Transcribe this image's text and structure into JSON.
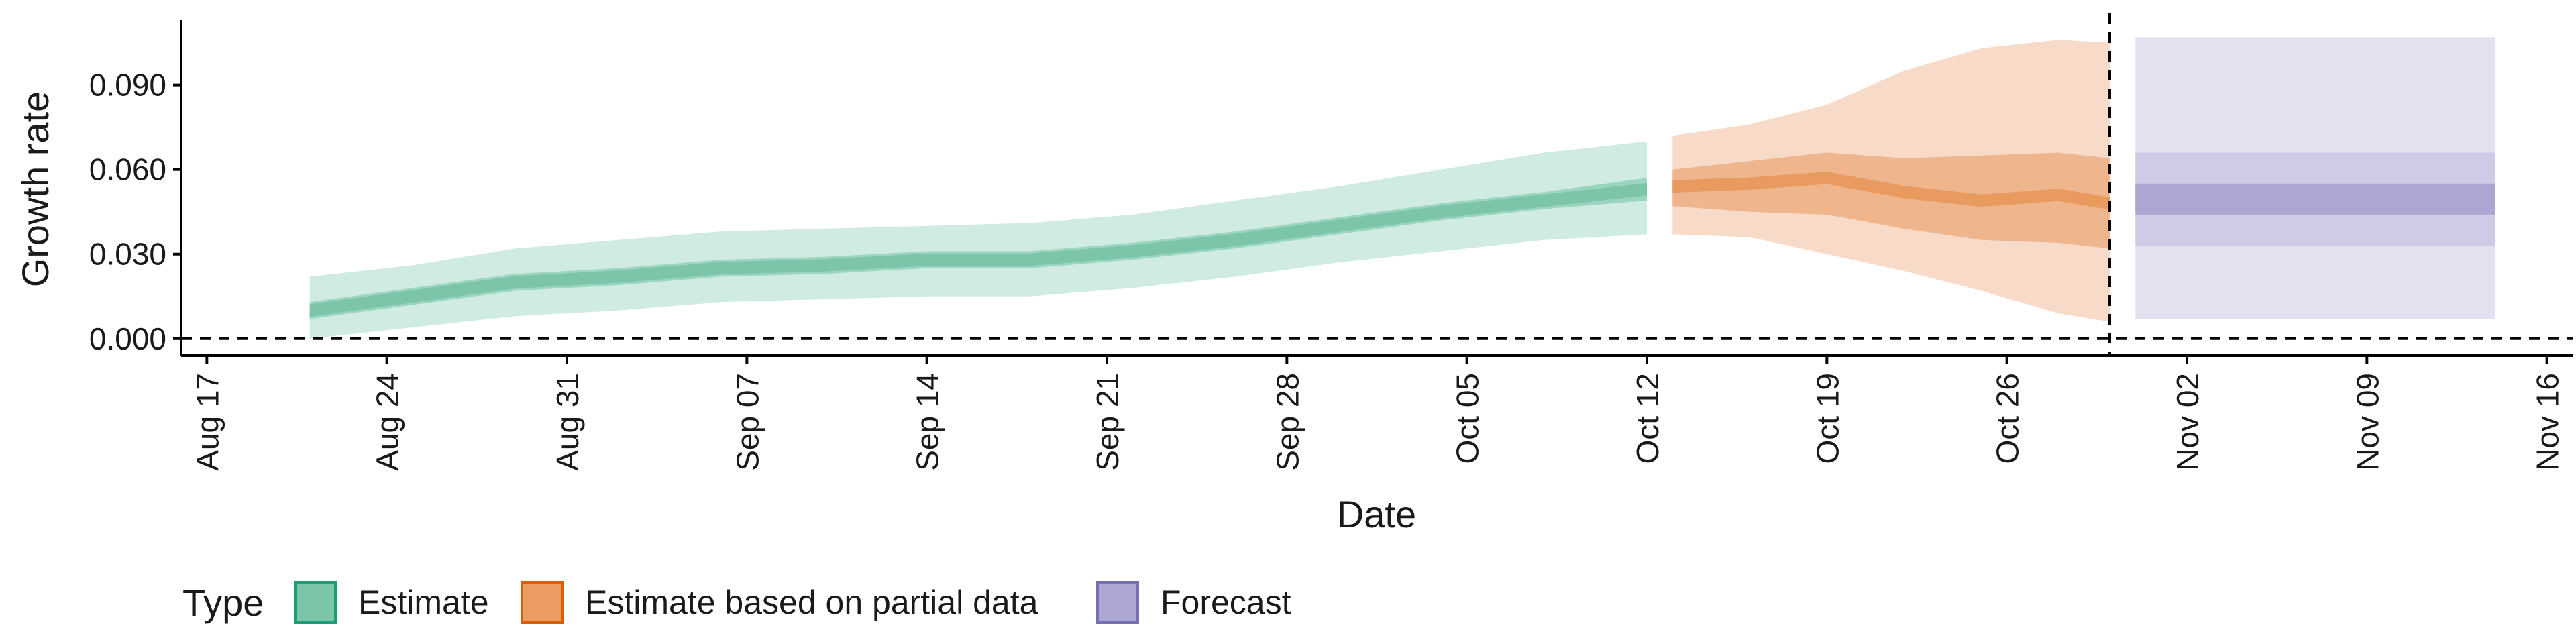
{
  "chart_data": {
    "type": "area",
    "xlabel": "Date",
    "ylabel": "Growth rate",
    "ylim": [
      -0.006,
      0.113
    ],
    "xlim": [
      "2020-08-16",
      "2020-11-17"
    ],
    "yticks": [
      0.0,
      0.03,
      0.06,
      0.09
    ],
    "ytick_labels": [
      "0.000",
      "0.030",
      "0.060",
      "0.090"
    ],
    "xticks": [
      "2020-08-17",
      "2020-08-24",
      "2020-08-31",
      "2020-09-07",
      "2020-09-14",
      "2020-09-21",
      "2020-09-28",
      "2020-10-05",
      "2020-10-12",
      "2020-10-19",
      "2020-10-26",
      "2020-11-02",
      "2020-11-09",
      "2020-11-16"
    ],
    "xtick_labels": [
      "Aug 17",
      "Aug 24",
      "Aug 31",
      "Sep 07",
      "Sep 14",
      "Sep 21",
      "Sep 28",
      "Oct 05",
      "Oct 12",
      "Oct 19",
      "Oct 26",
      "Nov 02",
      "Nov 09",
      "Nov 16"
    ],
    "hline": 0.0,
    "vline": "2020-10-30",
    "grid": false,
    "legend": {
      "title": "Type",
      "position": "bottom",
      "entries": [
        {
          "label": "Estimate",
          "color": "#7cc5a9",
          "border": "#1b9e77"
        },
        {
          "label": "Estimate based on partial data",
          "color": "#ec9e62",
          "border": "#d95f02"
        },
        {
          "label": "Forecast",
          "color": "#aba7d2",
          "border": "#7570b3"
        }
      ]
    },
    "series": [
      {
        "name": "Estimate",
        "colors": {
          "outer": "#d0ebe1",
          "inner": "#9ad6bf",
          "median": "#7cc5a9"
        },
        "x": [
          "2020-08-21",
          "2020-08-25",
          "2020-08-29",
          "2020-09-02",
          "2020-09-06",
          "2020-09-10",
          "2020-09-14",
          "2020-09-18",
          "2020-09-22",
          "2020-09-26",
          "2020-09-30",
          "2020-10-04",
          "2020-10-08",
          "2020-10-12"
        ],
        "median": [
          0.01,
          0.015,
          0.02,
          0.022,
          0.025,
          0.026,
          0.028,
          0.028,
          0.031,
          0.035,
          0.04,
          0.045,
          0.049,
          0.053
        ],
        "lower50": [
          0.007,
          0.012,
          0.017,
          0.019,
          0.022,
          0.023,
          0.025,
          0.025,
          0.028,
          0.032,
          0.037,
          0.042,
          0.046,
          0.049
        ],
        "upper50": [
          0.013,
          0.018,
          0.023,
          0.025,
          0.028,
          0.029,
          0.031,
          0.031,
          0.034,
          0.038,
          0.043,
          0.048,
          0.052,
          0.057
        ],
        "lower90": [
          0.0,
          0.004,
          0.008,
          0.01,
          0.013,
          0.014,
          0.015,
          0.015,
          0.018,
          0.022,
          0.027,
          0.031,
          0.035,
          0.037
        ],
        "upper90": [
          0.022,
          0.026,
          0.032,
          0.035,
          0.038,
          0.039,
          0.04,
          0.041,
          0.044,
          0.049,
          0.054,
          0.06,
          0.066,
          0.07
        ]
      },
      {
        "name": "Estimate based on partial data",
        "colors": {
          "outer": "#f7dac8",
          "inner": "#efb58c",
          "median": "#e89a5f"
        },
        "x": [
          "2020-10-13",
          "2020-10-16",
          "2020-10-19",
          "2020-10-22",
          "2020-10-25",
          "2020-10-28",
          "2020-10-30"
        ],
        "median": [
          0.054,
          0.055,
          0.057,
          0.052,
          0.049,
          0.051,
          0.048
        ],
        "lower50": [
          0.047,
          0.045,
          0.044,
          0.039,
          0.035,
          0.034,
          0.032
        ],
        "upper50": [
          0.06,
          0.063,
          0.066,
          0.064,
          0.065,
          0.066,
          0.064
        ],
        "lower90": [
          0.037,
          0.036,
          0.03,
          0.024,
          0.017,
          0.009,
          0.006
        ],
        "upper90": [
          0.072,
          0.076,
          0.083,
          0.095,
          0.103,
          0.106,
          0.105
        ]
      },
      {
        "name": "Forecast",
        "colors": {
          "outer": "#e2e1f0",
          "inner": "#cdcbe5",
          "median": "#aba7d2"
        },
        "x": [
          "2020-10-31",
          "2020-11-14"
        ],
        "median": [
          0.049,
          0.049
        ],
        "lower50": [
          0.033,
          0.033
        ],
        "upper50": [
          0.066,
          0.066
        ],
        "lower90": [
          0.007,
          0.007
        ],
        "upper90": [
          0.107,
          0.107
        ],
        "lower20": [
          0.044,
          0.044
        ],
        "upper20": [
          0.055,
          0.055
        ]
      }
    ]
  }
}
